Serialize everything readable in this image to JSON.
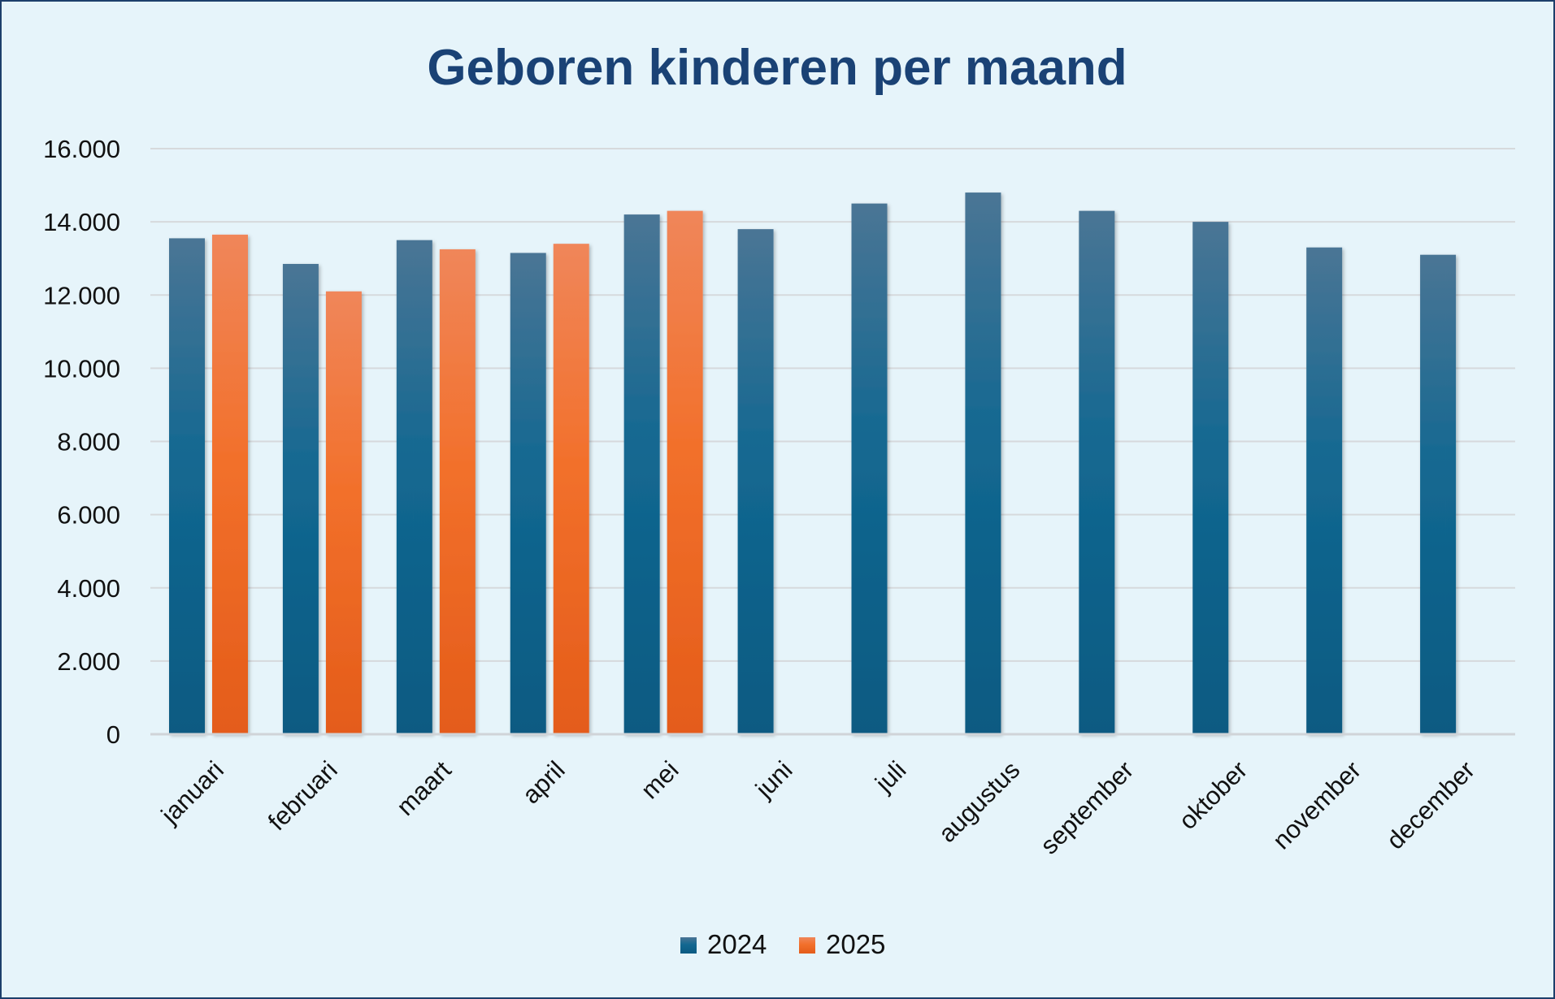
{
  "chart_data": {
    "type": "bar",
    "title": "Geboren kinderen per maand",
    "xlabel": "",
    "ylabel": "",
    "ylim": [
      0,
      16000
    ],
    "yticks": [
      0,
      2000,
      4000,
      6000,
      8000,
      10000,
      12000,
      14000,
      16000
    ],
    "ytick_labels": [
      "0",
      "2.000",
      "4.000",
      "6.000",
      "8.000",
      "10.000",
      "12.000",
      "14.000",
      "16.000"
    ],
    "grid": true,
    "legend_position": "bottom",
    "categories": [
      "januari",
      "februari",
      "maart",
      "april",
      "mei",
      "juni",
      "juli",
      "augustus",
      "september",
      "oktober",
      "november",
      "december"
    ],
    "series": [
      {
        "name": "2024",
        "color": "#0f5f86",
        "values": [
          13550,
          12850,
          13500,
          13150,
          14200,
          13800,
          14500,
          14800,
          14300,
          14000,
          13300,
          13100
        ]
      },
      {
        "name": "2025",
        "color": "#ee6a28",
        "values": [
          13650,
          12100,
          13250,
          13400,
          14300,
          null,
          null,
          null,
          null,
          null,
          null,
          null
        ]
      }
    ]
  }
}
